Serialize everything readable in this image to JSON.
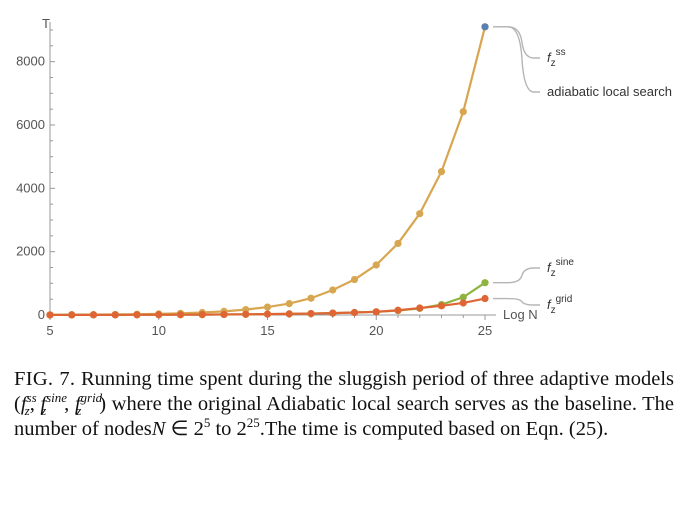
{
  "chart_data": {
    "type": "line",
    "xlabel": "Log N",
    "ylabel": "T",
    "xlim": [
      5,
      25
    ],
    "ylim": [
      0,
      9000
    ],
    "x_ticks": [
      5,
      10,
      15,
      20,
      25
    ],
    "y_ticks": [
      0,
      2000,
      4000,
      6000,
      8000
    ],
    "grid": false,
    "x": [
      5,
      6,
      7,
      8,
      9,
      10,
      11,
      12,
      13,
      14,
      15,
      16,
      17,
      18,
      19,
      20,
      21,
      22,
      23,
      24,
      25
    ],
    "series": [
      {
        "name": "adiabatic local search",
        "color": "#d8a650",
        "values": [
          5,
          8,
          12,
          18,
          25,
          35,
          52,
          78,
          115,
          170,
          250,
          360,
          530,
          790,
          1120,
          1580,
          2260,
          3200,
          4530,
          6420,
          9100
        ]
      },
      {
        "name": "f_z^ss",
        "color": "#5b80b0",
        "values": [
          null,
          null,
          null,
          null,
          null,
          null,
          null,
          null,
          null,
          null,
          null,
          null,
          null,
          null,
          null,
          null,
          null,
          null,
          null,
          null,
          9100
        ]
      },
      {
        "name": "f_z^sine",
        "color": "#8fb33f",
        "values": [
          2,
          3,
          4,
          5,
          6,
          8,
          10,
          13,
          17,
          22,
          28,
          36,
          46,
          60,
          78,
          100,
          140,
          210,
          330,
          560,
          1020
        ]
      },
      {
        "name": "f_z^grid",
        "color": "#e06535",
        "values": [
          2,
          3,
          4,
          5,
          6,
          8,
          10,
          13,
          17,
          22,
          28,
          36,
          46,
          60,
          78,
          100,
          150,
          220,
          290,
          380,
          520
        ]
      }
    ],
    "legend": [
      {
        "label_base": "f",
        "label_sub": "z",
        "label_sup": "ss",
        "series": 1
      },
      {
        "label_base": "adiabatic local search",
        "series": 0
      },
      {
        "label_base": "f",
        "label_sub": "z",
        "label_sup": "sine",
        "series": 2
      },
      {
        "label_base": "f",
        "label_sub": "z",
        "label_sup": "grid",
        "series": 3
      }
    ],
    "legend_placement": "right"
  },
  "caption": {
    "label": "FIG. 7.",
    "text_1": "Running time spent during the sluggish period of three adaptive models (",
    "f": "f",
    "sub_z": "z",
    "sup_ss": "ss",
    "sup_sine": "sine",
    "sup_grid": "grid",
    "sep": ", ",
    "text_2": ") where the original Adiabatic local search serves as the baseline.  The number of nodes",
    "N": "N",
    "elem": " ∈ 2",
    "exp1": "5",
    "to": " to 2",
    "exp2": "25",
    "text_3": ".The time is computed based on Eqn. (25)."
  }
}
